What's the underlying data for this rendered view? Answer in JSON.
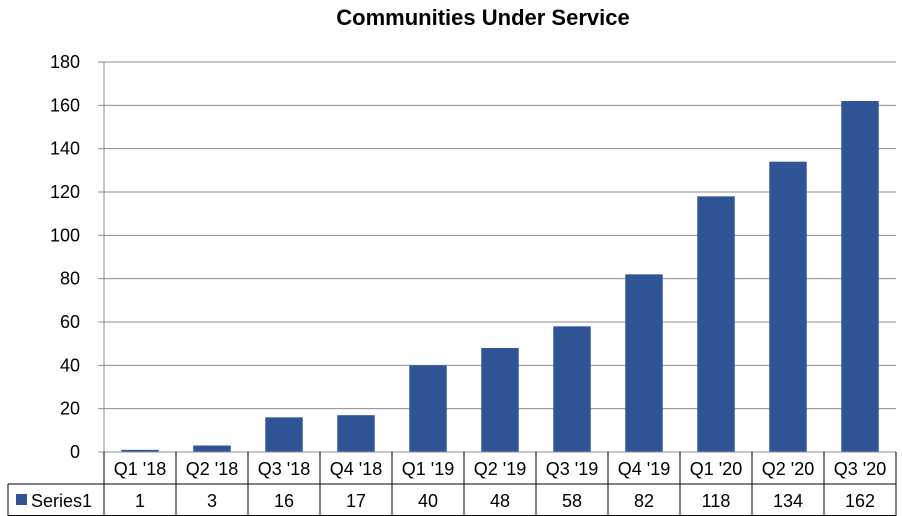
{
  "chart_data": {
    "type": "bar",
    "title": "Communities Under Service",
    "xlabel": "",
    "ylabel": "",
    "categories": [
      "Q1 '18",
      "Q2 '18",
      "Q3 '18",
      "Q4 '18",
      "Q1 '19",
      "Q2 '19",
      "Q3 '19",
      "Q4 '19",
      "Q1 '20",
      "Q2 '20",
      "Q3 '20"
    ],
    "series": [
      {
        "name": "Series1",
        "values": [
          1,
          3,
          16,
          17,
          40,
          48,
          58,
          82,
          118,
          134,
          162
        ]
      }
    ],
    "ylim": [
      0,
      180
    ],
    "yticks": [
      0,
      20,
      40,
      60,
      80,
      100,
      120,
      140,
      160,
      180
    ],
    "grid": true,
    "data_table": true,
    "colors": {
      "bar": "#2f5597",
      "grid": "#8c8c8c",
      "axis": "#8c8c8c"
    }
  }
}
